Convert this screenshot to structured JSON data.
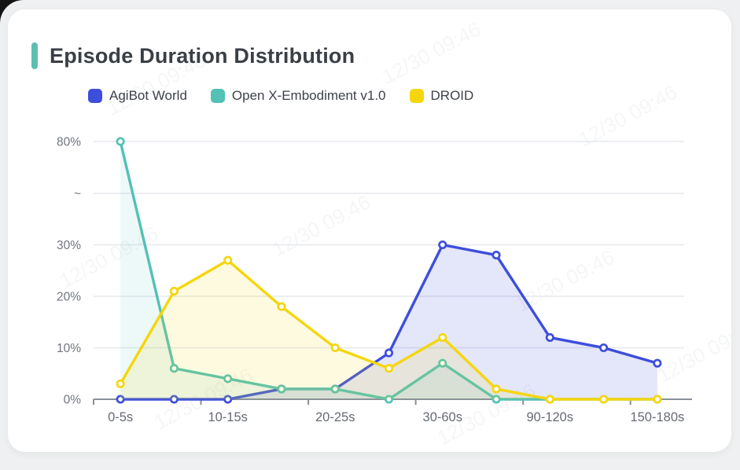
{
  "header": {
    "title": "Episode Duration Distribution",
    "accent_color": "#5bbfb2"
  },
  "watermark": {
    "text": "12/30 09:46"
  },
  "chart_data": {
    "type": "line",
    "title": "Episode Duration Distribution",
    "categories": [
      "0-5s",
      "",
      "10-15s",
      "",
      "20-25s",
      "",
      "30-60s",
      "",
      "90-120s",
      "",
      "150-180s"
    ],
    "series": [
      {
        "name": "AgiBot World",
        "color": "#3d4edb",
        "area_opacity": 0.14,
        "values": [
          0,
          0,
          0,
          2,
          2,
          9,
          30,
          28,
          12,
          10,
          7
        ]
      },
      {
        "name": "Open X-Embodiment v1.0",
        "color": "#52c1b6",
        "area_opacity": 0.1,
        "values": [
          80,
          6,
          4,
          2,
          2,
          0,
          7,
          0,
          0,
          0,
          0
        ]
      },
      {
        "name": "DROID",
        "color": "#f5d60e",
        "area_opacity": 0.13,
        "values": [
          3,
          21,
          27,
          18,
          10,
          6,
          12,
          2,
          0,
          0,
          0
        ]
      }
    ],
    "y_ticks": [
      {
        "value": 0,
        "label": "0%"
      },
      {
        "value": 10,
        "label": "10%"
      },
      {
        "value": 20,
        "label": "20%"
      },
      {
        "value": 30,
        "label": "30%"
      },
      {
        "value": "break",
        "label": "~"
      },
      {
        "value": 80,
        "label": "80%"
      }
    ],
    "y_axis_break": {
      "linear_until": 30,
      "resumes_at": 80
    },
    "xlabel": "",
    "ylabel": "",
    "grid": true,
    "legend_position": "top",
    "axis_color": "#8a909a",
    "grid_color": "#e6e8ee",
    "tick_label_color": "#70757e",
    "x_label_color": "#666b73"
  }
}
